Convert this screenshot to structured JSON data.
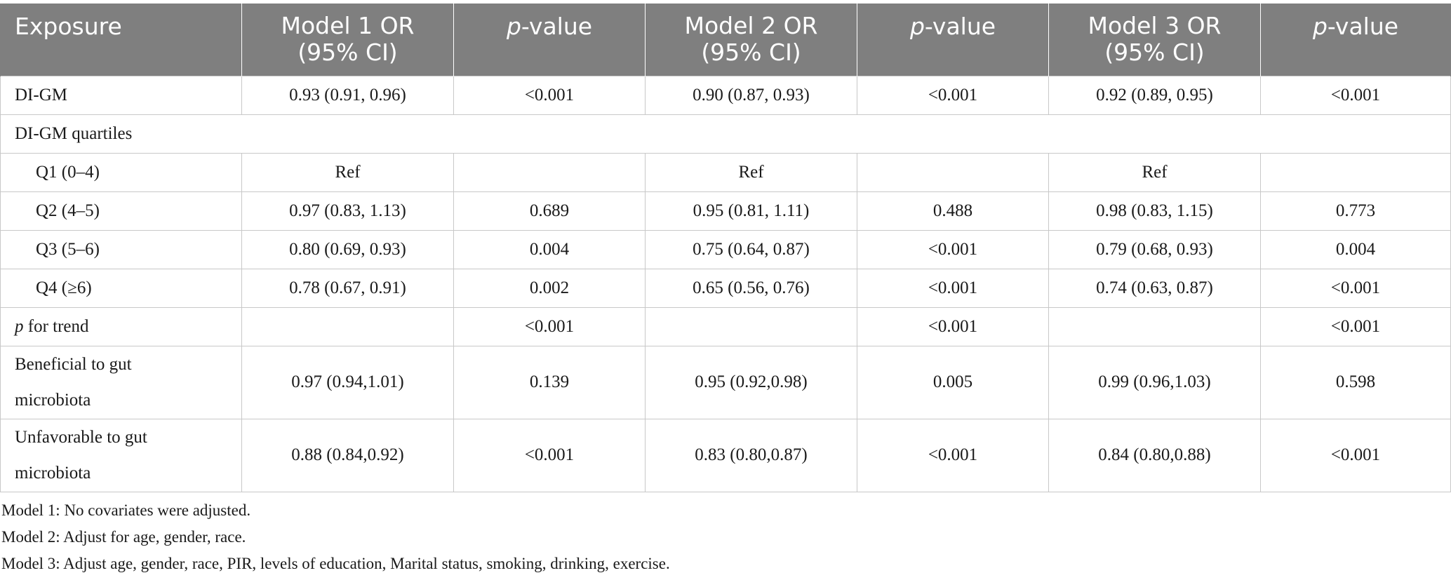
{
  "table": {
    "headers": [
      {
        "text": "Exposure"
      },
      {
        "text": "Model 1 OR (95% CI)"
      },
      {
        "italic": "p",
        "rest": "-value"
      },
      {
        "text": "Model 2 OR (95% CI)"
      },
      {
        "italic": "p",
        "rest": "-value"
      },
      {
        "text": "Model 3 OR (95% CI)"
      },
      {
        "italic": "p",
        "rest": "-value"
      }
    ],
    "rows": [
      {
        "label": "DI-GM",
        "cells": [
          "0.93 (0.91, 0.96)",
          "<0.001",
          "0.90 (0.87, 0.93)",
          "<0.001",
          "0.92 (0.89, 0.95)",
          "<0.001"
        ]
      },
      {
        "label": "DI-GM quartiles",
        "section": true
      },
      {
        "label": "Q1 (0–4)",
        "cells": [
          "Ref",
          "",
          "Ref",
          "",
          "Ref",
          ""
        ]
      },
      {
        "label": "Q2 (4–5)",
        "cells": [
          "0.97 (0.83, 1.13)",
          "0.689",
          "0.95 (0.81, 1.11)",
          "0.488",
          "0.98 (0.83, 1.15)",
          "0.773"
        ]
      },
      {
        "label": "Q3 (5–6)",
        "cells": [
          "0.80 (0.69, 0.93)",
          "0.004",
          "0.75 (0.64, 0.87)",
          "<0.001",
          "0.79 (0.68, 0.93)",
          "0.004"
        ]
      },
      {
        "label": "Q4 (≥6)",
        "cells": [
          "0.78 (0.67, 0.91)",
          "0.002",
          "0.65 (0.56, 0.76)",
          "<0.001",
          "0.74 (0.63, 0.87)",
          "<0.001"
        ]
      },
      {
        "label_italic": "p",
        "label_rest": " for trend",
        "cells": [
          "",
          "<0.001",
          "",
          "<0.001",
          "",
          "<0.001"
        ]
      },
      {
        "label_line1": "Beneficial to gut",
        "label_line2": "microbiota",
        "cells": [
          "0.97 (0.94,1.01)",
          "0.139",
          "0.95 (0.92,0.98)",
          "0.005",
          "0.99 (0.96,1.03)",
          "0.598"
        ]
      },
      {
        "label_line1": "Unfavorable to gut",
        "label_line2": "microbiota",
        "cells": [
          "0.88 (0.84,0.92)",
          "<0.001",
          "0.83 (0.80,0.87)",
          "<0.001",
          "0.84 (0.80,0.88)",
          "<0.001"
        ]
      }
    ]
  },
  "notes": [
    "Model 1: No covariates were adjusted.",
    "Model 2: Adjust for age, gender, race.",
    "Model 3: Adjust age, gender, race, PIR, levels of education, Marital status, smoking, drinking, exercise."
  ]
}
